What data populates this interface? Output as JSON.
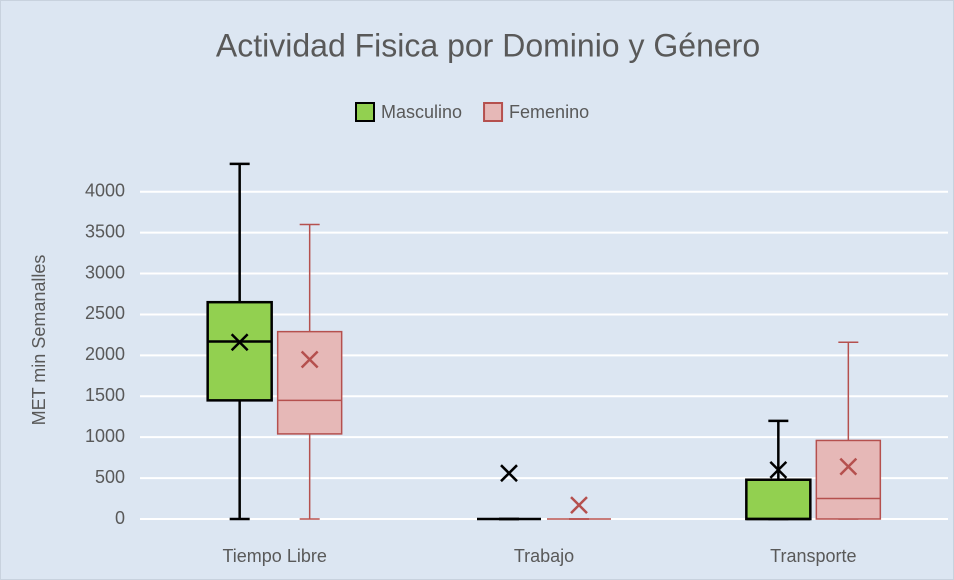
{
  "chart_data": {
    "type": "box",
    "title": "Actividad Fisica por Dominio y Género",
    "y_label": "MET min Semanalles",
    "categories": [
      "Tiempo Libre",
      "Trabajo",
      "Transporte"
    ],
    "series": [
      {
        "name": "Masculino",
        "color": "#92d050",
        "stroke": "#000000",
        "min": [
          0,
          0,
          0
        ],
        "q1": [
          1450,
          0,
          0
        ],
        "median": [
          2170,
          0,
          0
        ],
        "q3": [
          2650,
          0,
          480
        ],
        "max": [
          4340,
          0,
          1200
        ],
        "mean": [
          2160,
          560,
          600
        ]
      },
      {
        "name": "Femenino",
        "color": "#e6b8b7",
        "stroke": "#b5504e",
        "min": [
          0,
          0,
          0
        ],
        "q1": [
          1040,
          0,
          0
        ],
        "median": [
          1450,
          0,
          250
        ],
        "q3": [
          2290,
          0,
          960
        ],
        "max": [
          3600,
          0,
          2160
        ],
        "mean": [
          1950,
          170,
          640
        ]
      }
    ],
    "ylim": [
      0,
      4400
    ],
    "yticks": [
      0,
      500,
      1000,
      1500,
      2000,
      2500,
      3000,
      3500,
      4000
    ],
    "grid": true,
    "legend": "top"
  }
}
